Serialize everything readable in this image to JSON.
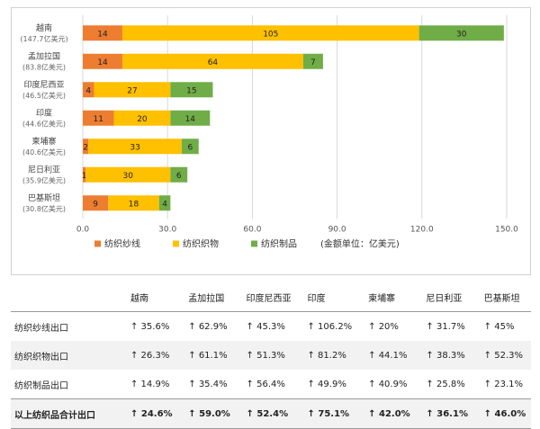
{
  "chart_data": {
    "type": "bar",
    "orientation": "horizontal",
    "stacked": true,
    "categories": [
      "越南",
      "孟加拉国",
      "印度尼西亚",
      "印度",
      "柬埔寨",
      "尼日利亚",
      "巴基斯坦"
    ],
    "category_totals": [
      "(147.7亿美元)",
      "(83.8亿美元)",
      "(46.5亿美元)",
      "(44.6亿美元)",
      "(40.6亿美元)",
      "(35.9亿美元)",
      "(30.8亿美元)"
    ],
    "series": [
      {
        "name": "纺织纱线",
        "color": "#ED7D31",
        "values": [
          14,
          14,
          4,
          11,
          2,
          1,
          9
        ]
      },
      {
        "name": "纺织织物",
        "color": "#FFC000",
        "values": [
          105,
          64,
          27,
          20,
          33,
          30,
          18
        ]
      },
      {
        "name": "纺织制品",
        "color": "#70AD47",
        "values": [
          30,
          7,
          15,
          14,
          6,
          6,
          4
        ]
      }
    ],
    "xlim": [
      0,
      150
    ],
    "xticks": [
      "0.0",
      "30.0",
      "60.0",
      "90.0",
      "120.0",
      "150.0"
    ],
    "unit_note": "(金额单位：亿美元)",
    "grid": true,
    "legend_position": "bottom"
  },
  "table": {
    "headers": [
      "越南",
      "孟加拉国",
      "印度尼西亚",
      "印度",
      "柬埔寨",
      "尼日利亚",
      "巴基斯坦"
    ],
    "rows": [
      {
        "label": "纺织纱线出口",
        "values": [
          "↑ 35.6%",
          "↑ 62.9%",
          "↑ 45.3%",
          "↑ 106.2%",
          "↑ 20%",
          "↑ 31.7%",
          "↑ 45%"
        ]
      },
      {
        "label": "纺织织物出口",
        "values": [
          "↑ 26.3%",
          "↑ 61.1%",
          "↑ 51.3%",
          "↑ 81.2%",
          "↑ 44.1%",
          "↑ 38.3%",
          "↑ 52.3%"
        ]
      },
      {
        "label": "纺织制品出口",
        "values": [
          "↑ 14.9%",
          "↑ 35.4%",
          "↑ 56.4%",
          "↑ 49.9%",
          "↑ 40.9%",
          "↑ 25.8%",
          "↑ 23.1%"
        ]
      },
      {
        "label": "以上纺织品合计出口",
        "values": [
          "↑ 24.6%",
          "↑ 59.0%",
          "↑ 52.4%",
          "↑ 75.1%",
          "↑ 42.0%",
          "↑ 36.1%",
          "↑ 46.0%"
        ]
      }
    ]
  }
}
